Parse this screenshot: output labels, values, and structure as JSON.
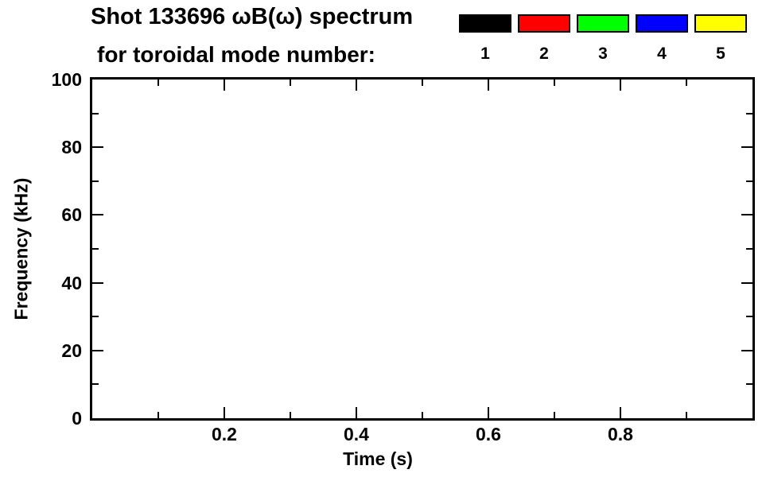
{
  "header": {
    "title": "Shot 133696 ωB(ω) spectrum",
    "subtitle": "for toroidal mode number:"
  },
  "chart_data": {
    "type": "scatter",
    "title": "Shot 133696 ωB(ω) spectrum",
    "subtitle": "for toroidal mode number:",
    "xlabel": "Time (s)",
    "ylabel": "Frequency (kHz)",
    "xlim": [
      0,
      1.0
    ],
    "ylim": [
      0,
      100
    ],
    "x_major_ticks": [
      0.2,
      0.4,
      0.6,
      0.8
    ],
    "x_tick_labels": [
      "0.2",
      "0.4",
      "0.6",
      "0.8"
    ],
    "x_minor_tick_step": 0.1,
    "y_major_ticks": [
      0,
      20,
      40,
      60,
      80,
      100
    ],
    "y_tick_labels": [
      "0",
      "20",
      "40",
      "60",
      "80",
      "100"
    ],
    "y_minor_tick_step": 10,
    "grid": false,
    "frame_color": "#000000",
    "background_color": "#ffffff",
    "legend": {
      "position": "top-right",
      "entries": [
        {
          "label": "1",
          "color": "#000000"
        },
        {
          "label": "2",
          "color": "#ff0000"
        },
        {
          "label": "3",
          "color": "#00ff00"
        },
        {
          "label": "4",
          "color": "#0000ff"
        },
        {
          "label": "5",
          "color": "#ffff00"
        }
      ]
    },
    "series": []
  }
}
